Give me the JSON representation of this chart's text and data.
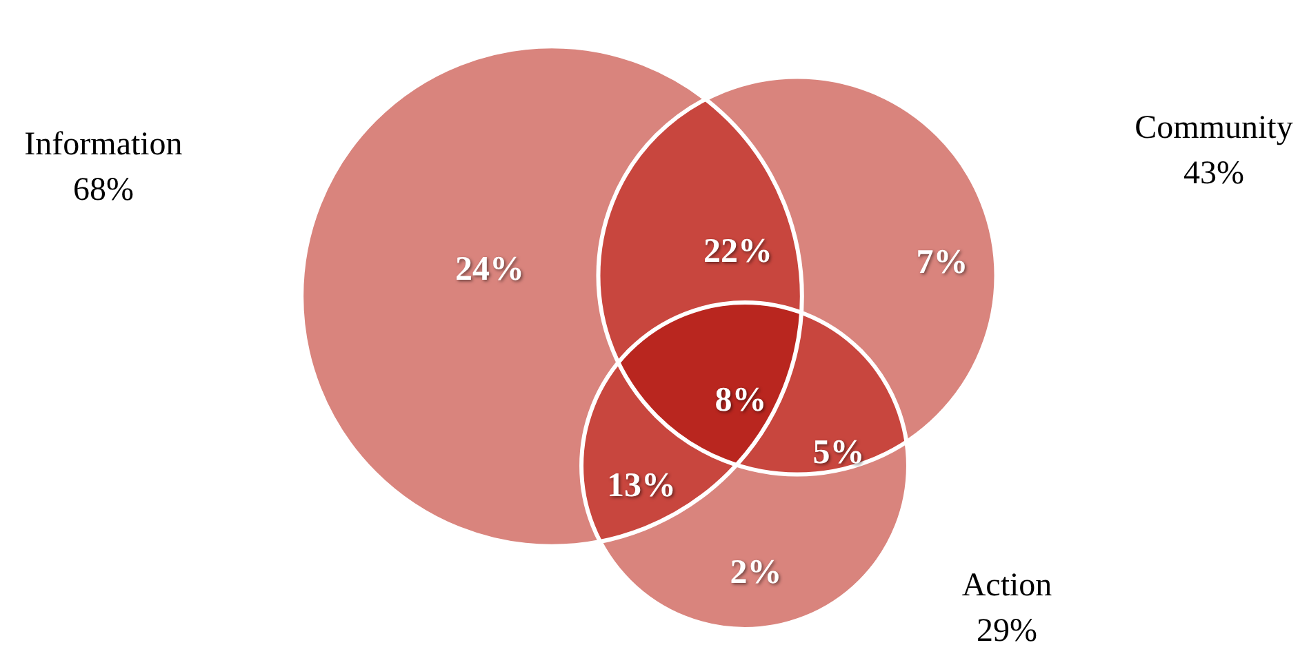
{
  "chart_data": {
    "type": "other",
    "categories": [
      "Information",
      "Community",
      "Action"
    ],
    "values": [
      68,
      43,
      29
    ],
    "value_labels": [
      "68%",
      "43%",
      "29%"
    ],
    "colors": [
      "#d9847d",
      "#d9847d",
      "#d9847d"
    ],
    "annotations": [
      "24%",
      "22%",
      "7%",
      "8%",
      "13%",
      "5%",
      "2%"
    ]
  }
}
